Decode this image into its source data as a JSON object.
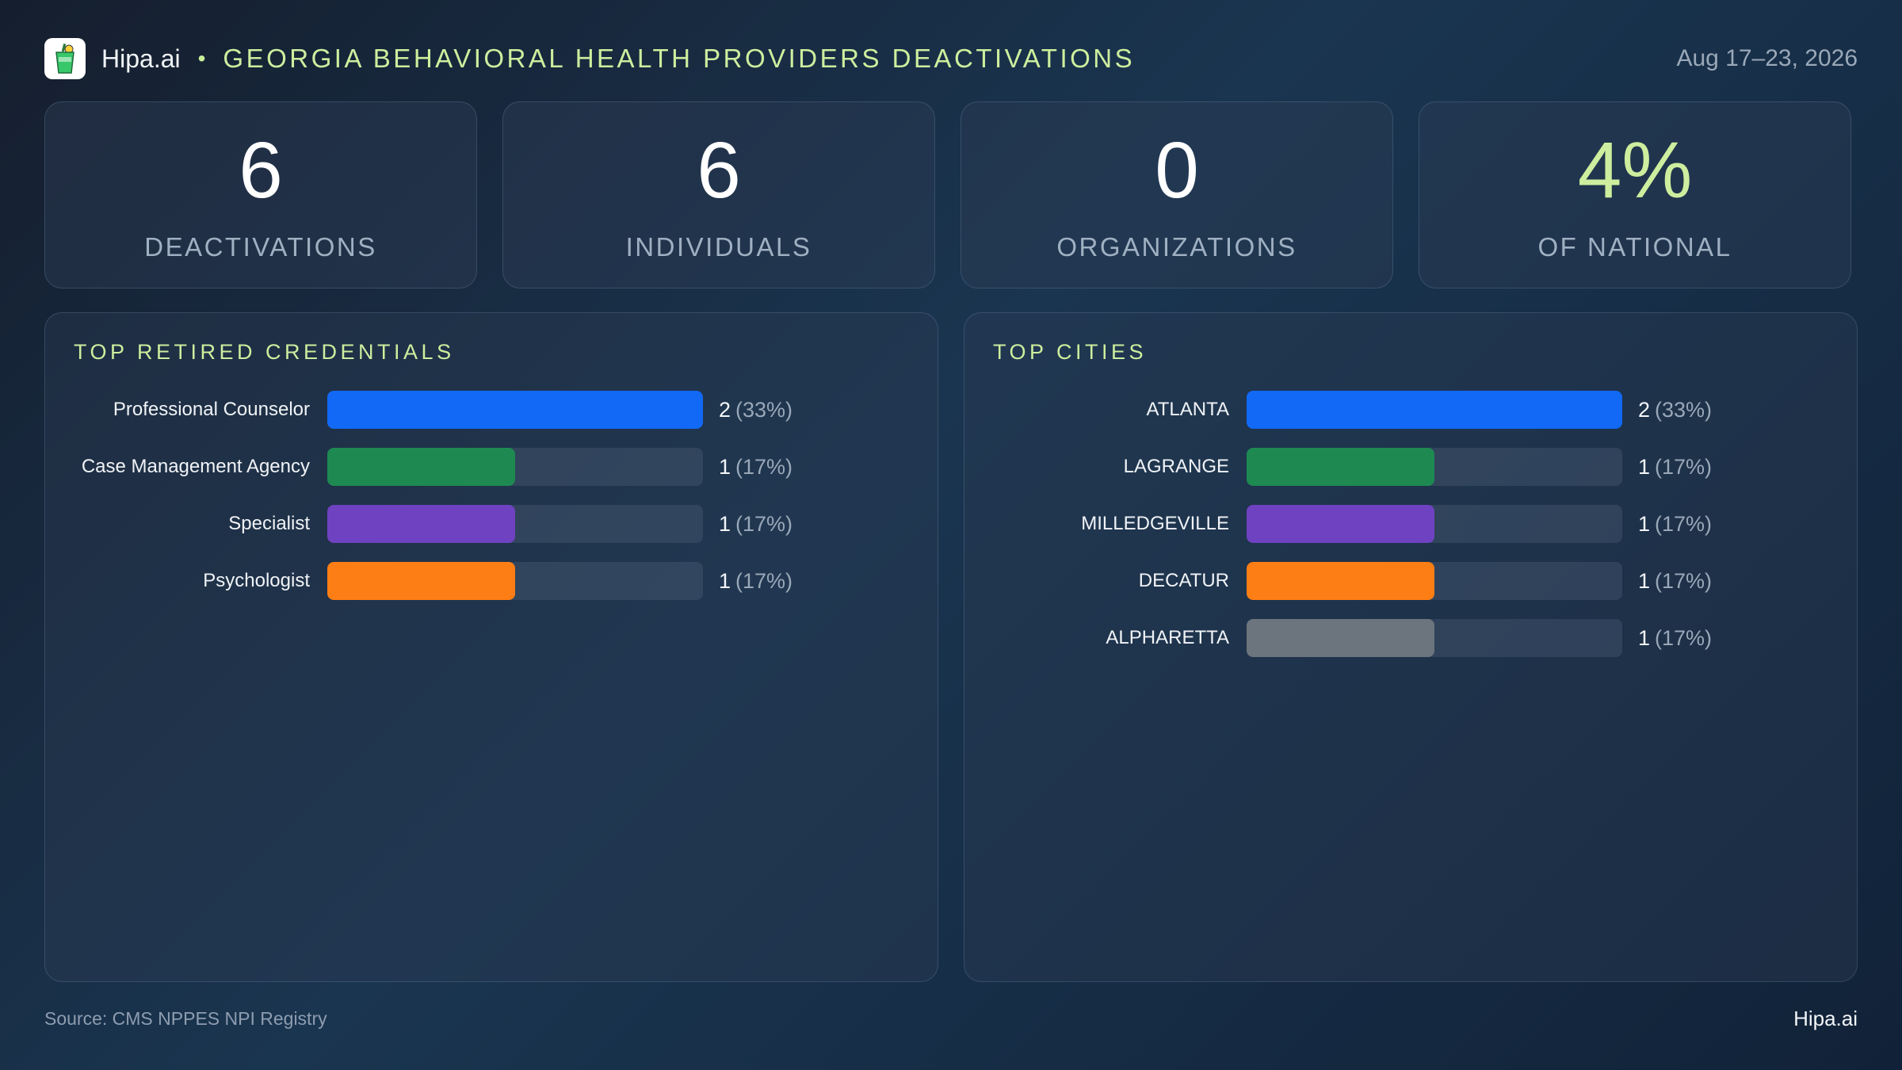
{
  "header": {
    "brand": "Hipa.ai",
    "separator": "•",
    "title": "GEORGIA BEHAVIORAL HEALTH PROVIDERS DEACTIVATIONS",
    "date": "Aug 17–23, 2026"
  },
  "stats": [
    {
      "value": "6",
      "label": "DEACTIVATIONS"
    },
    {
      "value": "6",
      "label": "INDIVIDUALS"
    },
    {
      "value": "0",
      "label": "ORGANIZATIONS"
    },
    {
      "value": "4%",
      "label": "OF NATIONAL"
    }
  ],
  "chart_data": [
    {
      "type": "bar",
      "title": "TOP RETIRED CREDENTIALS",
      "categories": [
        "Professional Counselor",
        "Case Management Agency",
        "Specialist",
        "Psychologist"
      ],
      "values": [
        2,
        1,
        1,
        1
      ],
      "percent_labels": [
        "(33%)",
        "(17%)",
        "(17%)",
        "(17%)"
      ],
      "colors": [
        "#1169f5",
        "#1e8a52",
        "#6f42c1",
        "#fd7e14"
      ],
      "xlim": [
        0,
        2
      ]
    },
    {
      "type": "bar",
      "title": "TOP CITIES",
      "categories": [
        "ATLANTA",
        "LAGRANGE",
        "MILLEDGEVILLE",
        "DECATUR",
        "ALPHARETTA"
      ],
      "values": [
        2,
        1,
        1,
        1,
        1
      ],
      "percent_labels": [
        "(33%)",
        "(17%)",
        "(17%)",
        "(17%)",
        "(17%)"
      ],
      "colors": [
        "#1169f5",
        "#1e8a52",
        "#6f42c1",
        "#fd7e14",
        "#6c757d"
      ],
      "xlim": [
        0,
        2
      ]
    }
  ],
  "footer": {
    "source": "Source: CMS NPPES NPI Registry",
    "brand": "Hipa.ai"
  }
}
